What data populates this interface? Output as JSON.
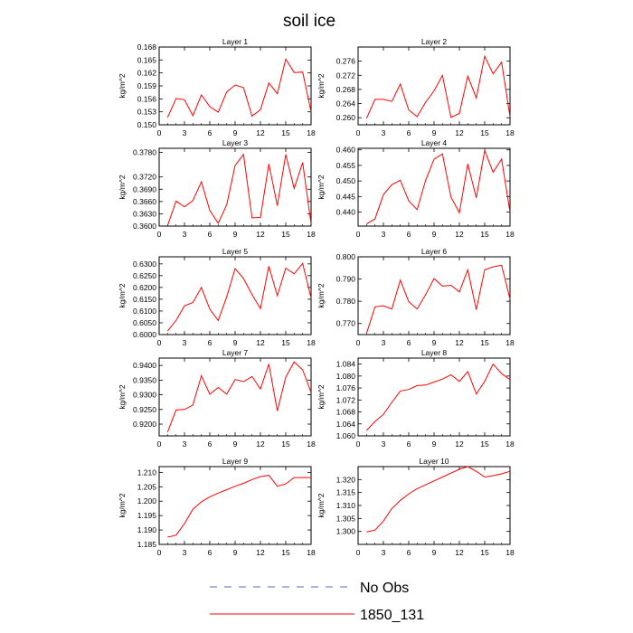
{
  "figure": {
    "title": "soil ice",
    "legend": [
      {
        "label": "No Obs",
        "style": "dashed",
        "color": "#4a6fd1"
      },
      {
        "label": "1850_131",
        "style": "solid",
        "color": "#ff0000"
      }
    ]
  },
  "chart_data": [
    {
      "type": "line",
      "title": "Layer 1",
      "ylabel": "kg/m^2",
      "x": [
        1,
        2,
        3,
        4,
        5,
        6,
        7,
        8,
        9,
        10,
        11,
        12,
        13,
        14,
        15,
        16,
        17,
        18
      ],
      "xlim": [
        0,
        18
      ],
      "xticks": [
        0,
        3,
        6,
        9,
        12,
        15,
        18
      ],
      "ylim": [
        0.15,
        0.168
      ],
      "yticks": [
        "0.150",
        "0.153",
        "0.156",
        "0.159",
        "0.162",
        "0.165",
        "0.168"
      ],
      "series": [
        {
          "name": "1850_131",
          "color": "#ff0000",
          "values": [
            0.1517,
            0.1561,
            0.1558,
            0.1521,
            0.1569,
            0.1542,
            0.1529,
            0.1576,
            0.1592,
            0.1586,
            0.152,
            0.1535,
            0.1597,
            0.1572,
            0.1652,
            0.1621,
            0.1622,
            0.153
          ]
        }
      ]
    },
    {
      "type": "line",
      "title": "Layer 2",
      "ylabel": "kg/m^2",
      "x": [
        1,
        2,
        3,
        4,
        5,
        6,
        7,
        8,
        9,
        10,
        11,
        12,
        13,
        14,
        15,
        16,
        17,
        18
      ],
      "xlim": [
        0,
        18
      ],
      "xticks": [
        0,
        3,
        6,
        9,
        12,
        15,
        18
      ],
      "ylim": [
        0.258,
        0.28
      ],
      "yticks": [
        "0.260",
        "0.264",
        "0.268",
        "0.272",
        "0.276"
      ],
      "series": [
        {
          "name": "1850_131",
          "color": "#ff0000",
          "values": [
            0.2598,
            0.2652,
            0.2652,
            0.2646,
            0.2695,
            0.2622,
            0.2603,
            0.2644,
            0.2676,
            0.272,
            0.2601,
            0.2612,
            0.2718,
            0.2656,
            0.2774,
            0.2724,
            0.2757,
            0.2603
          ]
        }
      ]
    },
    {
      "type": "line",
      "title": "Layer 3",
      "ylabel": "kg/m^2",
      "x": [
        1,
        2,
        3,
        4,
        5,
        6,
        7,
        8,
        9,
        10,
        11,
        12,
        13,
        14,
        15,
        16,
        17,
        18
      ],
      "xlim": [
        0,
        18
      ],
      "xticks": [
        0,
        3,
        6,
        9,
        12,
        15,
        18
      ],
      "ylim": [
        0.36,
        0.379
      ],
      "yticks": [
        "0.3600",
        "0.3630",
        "0.3660",
        "0.3690",
        "0.3720",
        "0.3780"
      ],
      "series": [
        {
          "name": "1850_131",
          "color": "#ff0000",
          "values": [
            0.3601,
            0.3661,
            0.3647,
            0.3662,
            0.3708,
            0.3638,
            0.3607,
            0.3652,
            0.3748,
            0.3775,
            0.362,
            0.3621,
            0.3752,
            0.365,
            0.3775,
            0.3692,
            0.3755,
            0.3606
          ]
        }
      ]
    },
    {
      "type": "line",
      "title": "Layer 4",
      "ylabel": "kg/m^2",
      "x": [
        1,
        2,
        3,
        4,
        5,
        6,
        7,
        8,
        9,
        10,
        11,
        12,
        13,
        14,
        15,
        16,
        17,
        18
      ],
      "xlim": [
        0,
        18
      ],
      "xticks": [
        0,
        3,
        6,
        9,
        12,
        15,
        18
      ],
      "ylim": [
        0.4355,
        0.4605
      ],
      "yticks": [
        "0.440",
        "0.445",
        "0.450",
        "0.455",
        "0.460"
      ],
      "series": [
        {
          "name": "1850_131",
          "color": "#ff0000",
          "values": [
            0.4362,
            0.4378,
            0.4456,
            0.4488,
            0.4502,
            0.4436,
            0.4408,
            0.4502,
            0.457,
            0.4587,
            0.4448,
            0.4398,
            0.4555,
            0.4446,
            0.4598,
            0.4528,
            0.457,
            0.44
          ]
        }
      ]
    },
    {
      "type": "line",
      "title": "Layer 5",
      "ylabel": "kg/m^2",
      "x": [
        1,
        2,
        3,
        4,
        5,
        6,
        7,
        8,
        9,
        10,
        11,
        12,
        13,
        14,
        15,
        16,
        17,
        18
      ],
      "xlim": [
        0,
        18
      ],
      "xticks": [
        0,
        3,
        6,
        9,
        12,
        15,
        18
      ],
      "ylim": [
        0.6,
        0.633
      ],
      "yticks": [
        "0.6000",
        "0.6050",
        "0.6100",
        "0.6150",
        "0.6200",
        "0.6250",
        "0.6300"
      ],
      "series": [
        {
          "name": "1850_131",
          "color": "#ff0000",
          "values": [
            0.6015,
            0.606,
            0.6122,
            0.6136,
            0.62,
            0.6108,
            0.606,
            0.616,
            0.628,
            0.6238,
            0.617,
            0.611,
            0.629,
            0.6165,
            0.6282,
            0.6258,
            0.6302,
            0.6155
          ]
        }
      ]
    },
    {
      "type": "line",
      "title": "Layer 6",
      "ylabel": "kg/m^2",
      "x": [
        1,
        2,
        3,
        4,
        5,
        6,
        7,
        8,
        9,
        10,
        11,
        12,
        13,
        14,
        15,
        16,
        17,
        18
      ],
      "xlim": [
        0,
        18
      ],
      "xticks": [
        0,
        3,
        6,
        9,
        12,
        15,
        18
      ],
      "ylim": [
        0.765,
        0.8
      ],
      "yticks": [
        "0.770",
        "0.780",
        "0.790",
        "0.800"
      ],
      "series": [
        {
          "name": "1850_131",
          "color": "#ff0000",
          "values": [
            0.7655,
            0.7775,
            0.778,
            0.7765,
            0.7895,
            0.7798,
            0.7765,
            0.783,
            0.7902,
            0.7868,
            0.7872,
            0.7842,
            0.7942,
            0.7762,
            0.7942,
            0.7955,
            0.7962,
            0.781
          ]
        }
      ]
    },
    {
      "type": "line",
      "title": "Layer 7",
      "ylabel": "kg/m^2",
      "x": [
        1,
        2,
        3,
        4,
        5,
        6,
        7,
        8,
        9,
        10,
        11,
        12,
        13,
        14,
        15,
        16,
        17,
        18
      ],
      "xlim": [
        0,
        18
      ],
      "xticks": [
        0,
        3,
        6,
        9,
        12,
        15,
        18
      ],
      "ylim": [
        0.916,
        0.9425
      ],
      "yticks": [
        "0.9200",
        "0.9250",
        "0.9300",
        "0.9350",
        "0.9400"
      ],
      "series": [
        {
          "name": "1850_131",
          "color": "#ff0000",
          "values": [
            0.9173,
            0.9248,
            0.925,
            0.9265,
            0.9365,
            0.9302,
            0.9325,
            0.9302,
            0.9352,
            0.9345,
            0.9362,
            0.932,
            0.9405,
            0.9245,
            0.936,
            0.9412,
            0.9385,
            0.9308
          ]
        }
      ]
    },
    {
      "type": "line",
      "title": "Layer 8",
      "ylabel": "kg/m^2",
      "x": [
        1,
        2,
        3,
        4,
        5,
        6,
        7,
        8,
        9,
        10,
        11,
        12,
        13,
        14,
        15,
        16,
        17,
        18
      ],
      "xlim": [
        0,
        18
      ],
      "xticks": [
        0,
        3,
        6,
        9,
        12,
        15,
        18
      ],
      "ylim": [
        1.06,
        1.086
      ],
      "yticks": [
        "1.060",
        "1.064",
        "1.068",
        "1.072",
        "1.076",
        "1.080",
        "1.084"
      ],
      "series": [
        {
          "name": "1850_131",
          "color": "#ff0000",
          "values": [
            1.0618,
            1.0648,
            1.0672,
            1.0712,
            1.075,
            1.0755,
            1.0768,
            1.077,
            1.078,
            1.079,
            1.0804,
            1.0782,
            1.0815,
            1.074,
            1.0782,
            1.084,
            1.0808,
            1.0788
          ]
        }
      ]
    },
    {
      "type": "line",
      "title": "Layer 9",
      "ylabel": "kg/m^2",
      "x": [
        1,
        2,
        3,
        4,
        5,
        6,
        7,
        8,
        9,
        10,
        11,
        12,
        13,
        14,
        15,
        16,
        17,
        18
      ],
      "xlim": [
        0,
        18
      ],
      "xticks": [
        0,
        3,
        6,
        9,
        12,
        15,
        18
      ],
      "ylim": [
        1.185,
        1.212
      ],
      "yticks": [
        "1.185",
        "1.190",
        "1.195",
        "1.200",
        "1.205",
        "1.210"
      ],
      "series": [
        {
          "name": "1850_131",
          "color": "#ff0000",
          "values": [
            1.1875,
            1.1882,
            1.1922,
            1.1972,
            1.1998,
            1.2015,
            1.2028,
            1.204,
            1.2052,
            1.2062,
            1.2075,
            1.2085,
            1.209,
            1.2052,
            1.206,
            1.2082,
            1.2082,
            1.2082
          ]
        }
      ]
    },
    {
      "type": "line",
      "title": "Layer 10",
      "ylabel": "kg/m^2",
      "x": [
        1,
        2,
        3,
        4,
        5,
        6,
        7,
        8,
        9,
        10,
        11,
        12,
        13,
        14,
        15,
        16,
        17,
        18
      ],
      "xlim": [
        0,
        18
      ],
      "xticks": [
        0,
        3,
        6,
        9,
        12,
        15,
        18
      ],
      "ylim": [
        1.295,
        1.325
      ],
      "yticks": [
        "1.300",
        "1.305",
        "1.310",
        "1.315",
        "1.320"
      ],
      "series": [
        {
          "name": "1850_131",
          "color": "#ff0000",
          "values": [
            1.2998,
            1.3005,
            1.304,
            1.3088,
            1.312,
            1.3145,
            1.3165,
            1.318,
            1.3195,
            1.321,
            1.3225,
            1.324,
            1.325,
            1.3232,
            1.321,
            1.3215,
            1.3222,
            1.3232
          ]
        }
      ]
    }
  ]
}
